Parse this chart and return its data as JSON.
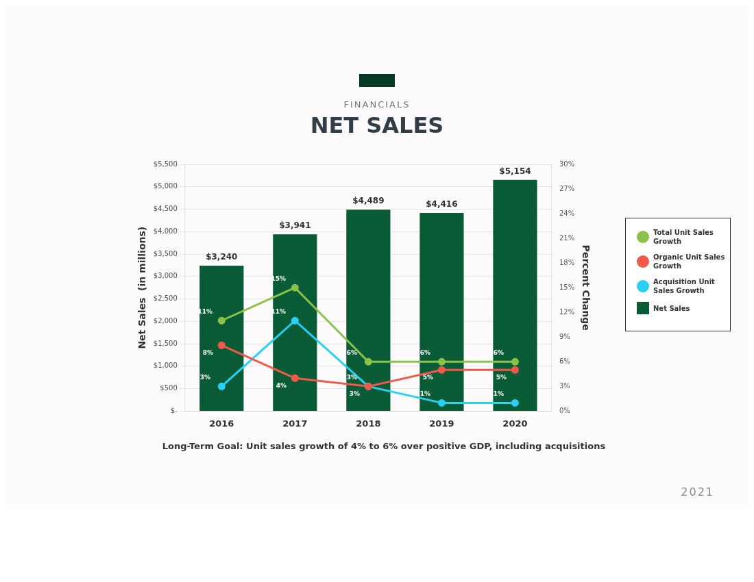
{
  "chart_data": {
    "type": "bar",
    "subtitle": "FINANCIALS",
    "title": "NET SALES",
    "categories": [
      "2016",
      "2017",
      "2018",
      "2019",
      "2020"
    ],
    "ylabel": "Net Sales  (in millions)",
    "y2label": "Percent Change",
    "series": [
      {
        "name": "Total Unit Sales Growth",
        "type": "line",
        "axis": "y2",
        "color": "#8bc34a",
        "values": [
          11,
          15,
          6,
          6,
          6
        ],
        "value_labels": [
          "11%",
          "15%",
          "6%",
          "6%",
          "6%"
        ]
      },
      {
        "name": "Organic Unit Sales Growth",
        "type": "line",
        "axis": "y2",
        "color": "#f15a4a",
        "values": [
          8,
          4,
          3,
          5,
          5
        ],
        "value_labels": [
          "8%",
          "4%",
          "3%",
          "5%",
          "5%"
        ]
      },
      {
        "name": "Acquisition Unit Sales Growth",
        "type": "line",
        "axis": "y2",
        "color": "#29d0f5",
        "values": [
          3,
          11,
          3,
          1,
          1
        ],
        "value_labels": [
          "3%",
          "11%",
          "3%",
          "1%",
          "1%"
        ]
      },
      {
        "name": "Net Sales",
        "color": "#0a5c36",
        "values": [
          3240,
          3941,
          4489,
          4416,
          5154
        ],
        "value_labels": [
          "$3,240",
          "$3,941",
          "$4,489",
          "$4,416",
          "$5,154"
        ]
      }
    ],
    "ylim": [
      0,
      5500
    ],
    "yticks": [
      {
        "value": 0,
        "label": "$-"
      },
      {
        "value": 500,
        "label": "$500"
      },
      {
        "value": 1000,
        "label": "$1,000"
      },
      {
        "value": 1500,
        "label": "$1,500"
      },
      {
        "value": 2000,
        "label": "$2,000"
      },
      {
        "value": 2500,
        "label": "$2,500"
      },
      {
        "value": 3000,
        "label": "$3,000"
      },
      {
        "value": 3500,
        "label": "$3,500"
      },
      {
        "value": 4000,
        "label": "$4,000"
      },
      {
        "value": 4500,
        "label": "$4,500"
      },
      {
        "value": 5000,
        "label": "$5,000"
      },
      {
        "value": 5500,
        "label": "$5,500"
      }
    ],
    "y2lim": [
      0,
      30
    ],
    "y2ticks": [
      {
        "value": 0,
        "label": "0%"
      },
      {
        "value": 3,
        "label": "3%"
      },
      {
        "value": 6,
        "label": "6%"
      },
      {
        "value": 9,
        "label": "9%"
      },
      {
        "value": 12,
        "label": "12%"
      },
      {
        "value": 15,
        "label": "15%"
      },
      {
        "value": 18,
        "label": "18%"
      },
      {
        "value": 21,
        "label": "21%"
      },
      {
        "value": 24,
        "label": "24%"
      },
      {
        "value": 27,
        "label": "27%"
      },
      {
        "value": 30,
        "label": "30%"
      }
    ],
    "grid": "y",
    "legend": "right",
    "marker": "circle",
    "annotations": [
      "Long-Term Goal: Unit sales growth of 4% to 6% over positive GDP, including acquisitions",
      "2021"
    ]
  }
}
